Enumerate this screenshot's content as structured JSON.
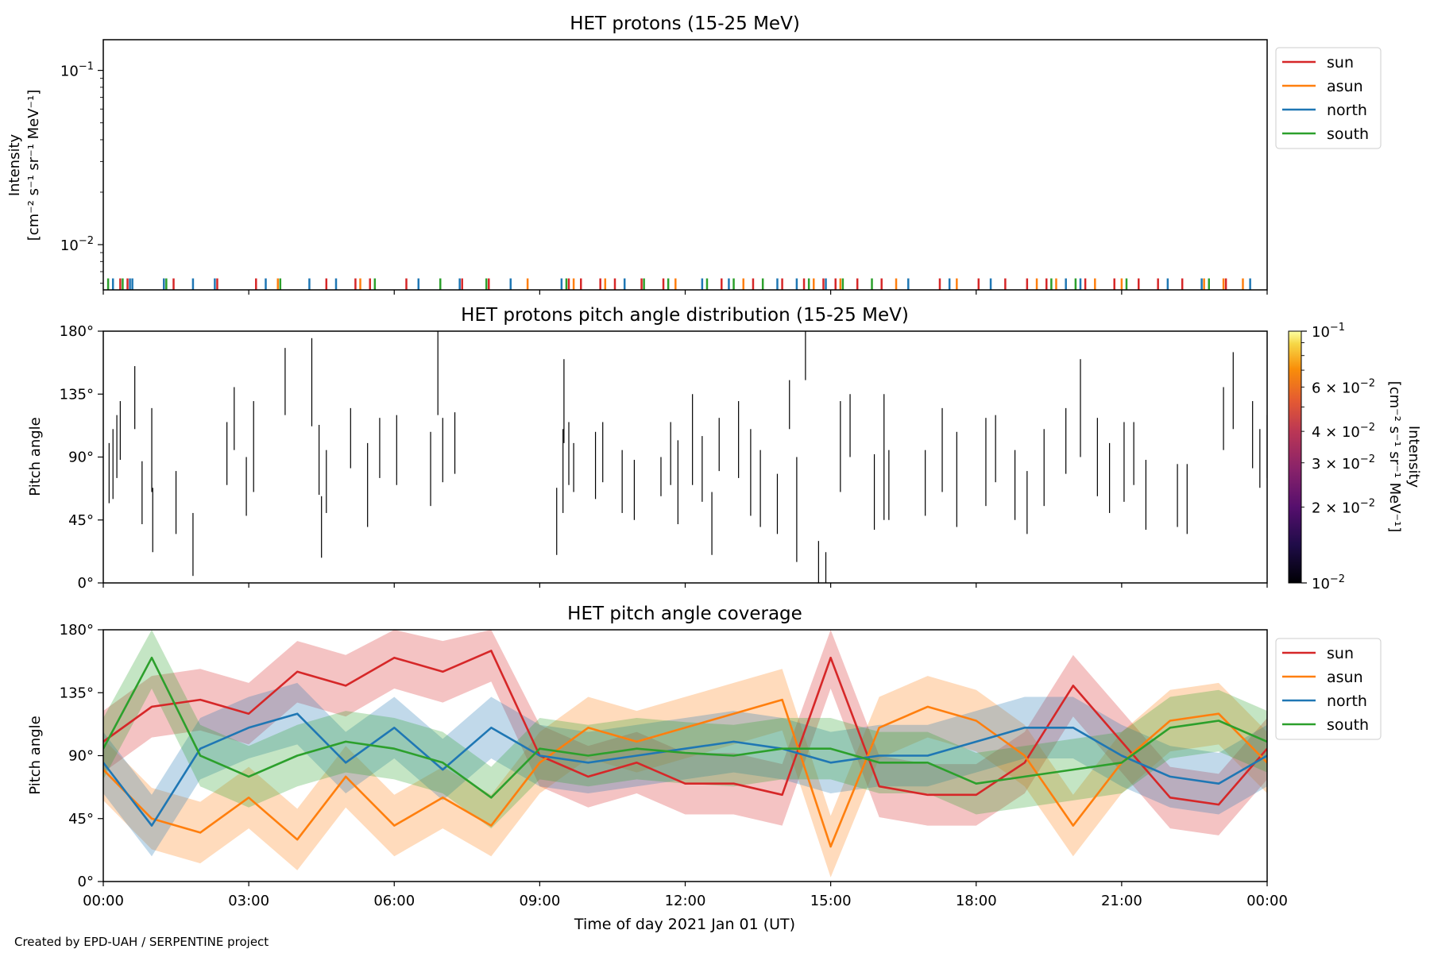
{
  "colors": {
    "sun": "#d62728",
    "asun": "#ff7f0e",
    "north": "#1f77b4",
    "south": "#2ca02c",
    "axis": "#000000"
  },
  "footer": {
    "credit": "Created by EPD-UAH / SERPENTINE project"
  },
  "xaxis": {
    "label": "Time of day 2021 Jan 01 (UT)",
    "range_hours": [
      0,
      24
    ],
    "ticks": [
      {
        "hour": 0,
        "label": "00:00"
      },
      {
        "hour": 3,
        "label": "03:00"
      },
      {
        "hour": 6,
        "label": "06:00"
      },
      {
        "hour": 9,
        "label": "09:00"
      },
      {
        "hour": 12,
        "label": "12:00"
      },
      {
        "hour": 15,
        "label": "15:00"
      },
      {
        "hour": 18,
        "label": "18:00"
      },
      {
        "hour": 21,
        "label": "21:00"
      },
      {
        "hour": 24,
        "label": "00:00"
      }
    ]
  },
  "chart_data": [
    {
      "type": "line",
      "title": "HET protons (15-25 MeV)",
      "ylabel_line1": "Intensity",
      "ylabel_line2": "[cm⁻² s⁻¹ sr⁻¹ MeV⁻¹]",
      "yscale": "log",
      "ylim": [
        0.0055,
        0.15
      ],
      "yticks": [
        {
          "value": 0.1,
          "base": "10",
          "exp": "−1"
        },
        {
          "value": 0.01,
          "base": "10",
          "exp": "−2"
        }
      ],
      "legend_position": "outside-right-top",
      "series": [
        {
          "name": "sun",
          "values_description": "sparse single-count spikes near y≈0.006",
          "spike_hours": [
            0.35,
            0.5,
            1.45,
            2.35,
            3.15,
            4.6,
            5.2,
            5.5,
            6.25,
            7.4,
            7.95,
            9.6,
            9.85,
            10.25,
            10.55,
            11.1,
            11.55,
            12.75,
            13.4,
            14.0,
            14.45,
            14.85,
            15.1,
            15.55,
            16.05,
            17.25,
            18.05,
            18.6,
            19.05,
            19.45,
            20.25,
            20.85,
            21.35,
            21.75,
            22.25,
            23.15
          ]
        },
        {
          "name": "asun",
          "values_description": "sparse single-count spikes near y≈0.006",
          "spike_hours": [
            1.25,
            3.6,
            5.3,
            8.75,
            9.7,
            10.35,
            11.8,
            13.2,
            14.65,
            15.2,
            16.35,
            17.6,
            19.25,
            19.65,
            20.45,
            21.0,
            22.7,
            23.1,
            23.5
          ]
        },
        {
          "name": "north",
          "values_description": "sparse single-count spikes near y≈0.006",
          "spike_hours": [
            0.2,
            0.55,
            0.6,
            1.25,
            1.85,
            2.3,
            3.35,
            4.25,
            4.8,
            6.5,
            7.35,
            8.4,
            9.45,
            10.75,
            12.35,
            12.9,
            13.9,
            14.3,
            14.9,
            16.6,
            17.45,
            18.3,
            19.85,
            20.15,
            21.95,
            22.65,
            23.65
          ]
        },
        {
          "name": "south",
          "values_description": "sparse single-count spikes near y≈0.006",
          "spike_hours": [
            0.1,
            0.4,
            1.3,
            3.65,
            5.6,
            6.95,
            7.9,
            9.55,
            11.15,
            11.65,
            12.45,
            13.0,
            13.6,
            14.55,
            15.25,
            15.85,
            19.55,
            20.05,
            21.1,
            22.8
          ]
        }
      ]
    },
    {
      "type": "heatmap",
      "title": "HET protons pitch angle distribution (15-25 MeV)",
      "ylabel": "Pitch angle",
      "ylim": [
        0,
        180
      ],
      "yticks": [
        "0°",
        "45°",
        "90°",
        "135°",
        "180°"
      ],
      "colorbar": {
        "label": "Intensity",
        "units": "[cm⁻² s⁻¹ sr⁻¹ MeV⁻¹]",
        "scale": "log",
        "range": [
          0.01,
          0.1
        ],
        "colormap": "inferno",
        "major_ticks": [
          {
            "value": 0.1,
            "base": "10",
            "exp": "−1"
          },
          {
            "value": 0.01,
            "base": "10",
            "exp": "−2"
          }
        ],
        "minor_labeled_ticks": [
          {
            "value": 0.06,
            "mant": "6 × 10",
            "exp": "−2"
          },
          {
            "value": 0.04,
            "mant": "4 × 10",
            "exp": "−2"
          },
          {
            "value": 0.03,
            "mant": "3 × 10",
            "exp": "−2"
          },
          {
            "value": 0.02,
            "mant": "2 × 10",
            "exp": "−2"
          }
        ]
      },
      "segments": [
        [
          0.12,
          57,
          100
        ],
        [
          0.2,
          60,
          110
        ],
        [
          0.28,
          75,
          120
        ],
        [
          0.35,
          88,
          130
        ],
        [
          0.65,
          110,
          155
        ],
        [
          0.8,
          42,
          87
        ],
        [
          1.0,
          65,
          125
        ],
        [
          1.02,
          22,
          68
        ],
        [
          1.5,
          35,
          80
        ],
        [
          1.85,
          5,
          50
        ],
        [
          2.55,
          70,
          115
        ],
        [
          2.7,
          95,
          140
        ],
        [
          2.95,
          48,
          90
        ],
        [
          3.1,
          65,
          130
        ],
        [
          3.75,
          120,
          168
        ],
        [
          4.3,
          112,
          175
        ],
        [
          4.45,
          63,
          113
        ],
        [
          4.5,
          18,
          62
        ],
        [
          4.6,
          50,
          95
        ],
        [
          5.1,
          82,
          125
        ],
        [
          5.45,
          40,
          100
        ],
        [
          5.7,
          75,
          118
        ],
        [
          6.05,
          70,
          120
        ],
        [
          6.75,
          55,
          108
        ],
        [
          6.9,
          120,
          180
        ],
        [
          7.0,
          72,
          118
        ],
        [
          7.25,
          78,
          122
        ],
        [
          9.35,
          20,
          68
        ],
        [
          9.48,
          50,
          110
        ],
        [
          9.5,
          100,
          160
        ],
        [
          9.6,
          70,
          115
        ],
        [
          9.7,
          65,
          100
        ],
        [
          10.15,
          60,
          108
        ],
        [
          10.3,
          72,
          115
        ],
        [
          10.7,
          50,
          95
        ],
        [
          10.95,
          45,
          88
        ],
        [
          11.5,
          62,
          90
        ],
        [
          11.7,
          70,
          115
        ],
        [
          11.85,
          42,
          102
        ],
        [
          12.15,
          70,
          135
        ],
        [
          12.35,
          58,
          105
        ],
        [
          12.55,
          20,
          65
        ],
        [
          12.7,
          80,
          118
        ],
        [
          13.1,
          75,
          130
        ],
        [
          13.35,
          48,
          110
        ],
        [
          13.55,
          40,
          95
        ],
        [
          13.9,
          35,
          78
        ],
        [
          14.15,
          110,
          145
        ],
        [
          14.3,
          15,
          90
        ],
        [
          14.48,
          145,
          180
        ],
        [
          14.75,
          0,
          30
        ],
        [
          14.9,
          0,
          22
        ],
        [
          15.2,
          65,
          130
        ],
        [
          15.4,
          90,
          135
        ],
        [
          15.9,
          38,
          92
        ],
        [
          16.1,
          45,
          135
        ],
        [
          16.2,
          45,
          95
        ],
        [
          16.95,
          48,
          95
        ],
        [
          17.3,
          65,
          125
        ],
        [
          17.6,
          40,
          108
        ],
        [
          18.2,
          55,
          118
        ],
        [
          18.4,
          72,
          120
        ],
        [
          18.8,
          45,
          95
        ],
        [
          19.05,
          35,
          80
        ],
        [
          19.4,
          55,
          110
        ],
        [
          19.85,
          78,
          125
        ],
        [
          20.15,
          90,
          160
        ],
        [
          20.5,
          62,
          118
        ],
        [
          20.75,
          50,
          100
        ],
        [
          21.05,
          58,
          115
        ],
        [
          21.25,
          70,
          115
        ],
        [
          21.5,
          38,
          88
        ],
        [
          22.15,
          40,
          85
        ],
        [
          22.35,
          35,
          85
        ],
        [
          23.1,
          95,
          140
        ],
        [
          23.3,
          110,
          165
        ],
        [
          23.7,
          82,
          130
        ],
        [
          23.85,
          68,
          110
        ],
        [
          24.0,
          75,
          120
        ]
      ]
    },
    {
      "type": "area",
      "title": "HET pitch angle coverage",
      "ylabel": "Pitch angle",
      "ylim": [
        0,
        180
      ],
      "yticks": [
        "0°",
        "45°",
        "90°",
        "135°",
        "180°"
      ],
      "legend_position": "outside-right-top",
      "band_halfwidth_deg": 22,
      "series": [
        {
          "name": "sun",
          "x": [
            0,
            1,
            2,
            3,
            4,
            5,
            6,
            7,
            8,
            9,
            10,
            11,
            12,
            13,
            14,
            15,
            16,
            17,
            18,
            19,
            20,
            21,
            22,
            23,
            24
          ],
          "values": [
            100,
            125,
            130,
            120,
            150,
            140,
            160,
            150,
            165,
            90,
            75,
            85,
            70,
            70,
            62,
            160,
            68,
            62,
            62,
            85,
            140,
            100,
            60,
            55,
            95
          ]
        },
        {
          "name": "asun",
          "x": [
            0,
            1,
            2,
            3,
            4,
            5,
            6,
            7,
            8,
            9,
            10,
            11,
            12,
            13,
            14,
            15,
            16,
            17,
            18,
            19,
            20,
            21,
            22,
            23,
            24
          ],
          "values": [
            80,
            45,
            35,
            60,
            30,
            75,
            40,
            60,
            40,
            85,
            110,
            100,
            110,
            120,
            130,
            25,
            110,
            125,
            115,
            90,
            40,
            85,
            115,
            120,
            85
          ]
        },
        {
          "name": "north",
          "x": [
            0,
            1,
            2,
            3,
            4,
            5,
            6,
            7,
            8,
            9,
            10,
            11,
            12,
            13,
            14,
            15,
            16,
            17,
            18,
            19,
            20,
            21,
            22,
            23,
            24
          ],
          "values": [
            85,
            40,
            95,
            110,
            120,
            85,
            110,
            80,
            110,
            90,
            85,
            90,
            95,
            100,
            95,
            85,
            90,
            90,
            100,
            110,
            110,
            90,
            75,
            70,
            90
          ]
        },
        {
          "name": "south",
          "x": [
            0,
            1,
            2,
            3,
            4,
            5,
            6,
            7,
            8,
            9,
            10,
            11,
            12,
            13,
            14,
            15,
            16,
            17,
            18,
            19,
            20,
            21,
            22,
            23,
            24
          ],
          "values": [
            95,
            160,
            90,
            75,
            90,
            100,
            95,
            85,
            60,
            95,
            90,
            95,
            92,
            90,
            95,
            95,
            85,
            85,
            70,
            75,
            80,
            85,
            110,
            115,
            100
          ]
        }
      ]
    }
  ]
}
